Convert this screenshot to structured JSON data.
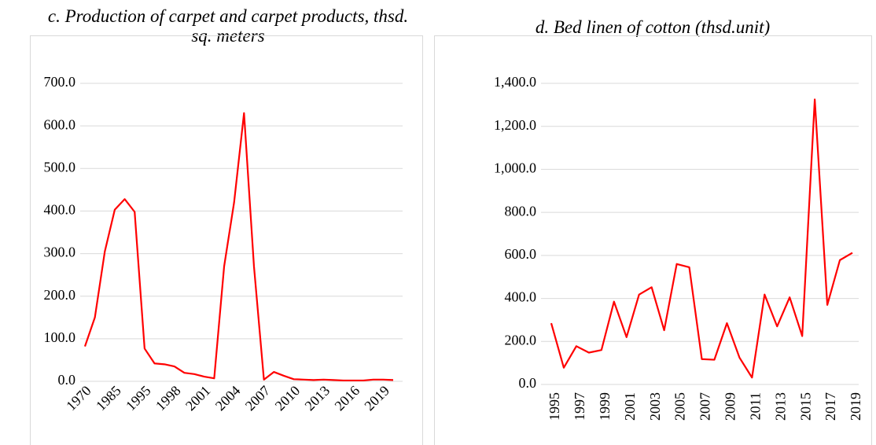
{
  "chart_data": [
    {
      "type": "line",
      "title": "c. Production of carpet and carpet products, thsd. sq. meters",
      "categories": [
        "1970",
        null,
        null,
        "1985",
        null,
        null,
        "1995",
        null,
        null,
        "1998",
        null,
        null,
        "2001",
        null,
        null,
        "2004",
        null,
        null,
        "2007",
        null,
        null,
        "2010",
        null,
        null,
        "2013",
        null,
        null,
        "2016",
        null,
        null,
        "2019",
        null
      ],
      "series": [
        {
          "name": "Production of carpet and carpet products",
          "color": "#ff0000",
          "values": [
            82,
            150,
            305,
            403,
            428,
            398,
            77,
            42,
            40,
            35,
            20,
            17,
            11,
            7,
            270,
            420,
            630,
            270,
            4,
            22,
            13,
            5,
            4,
            3,
            4,
            3,
            2,
            2,
            2,
            4,
            4,
            3
          ]
        }
      ],
      "ylim": [
        0,
        700
      ],
      "yticks": [
        {
          "value": 0,
          "label": "0.0"
        },
        {
          "value": 100,
          "label": "100.0"
        },
        {
          "value": 200,
          "label": "200.0"
        },
        {
          "value": 300,
          "label": "300.0"
        },
        {
          "value": 400,
          "label": "400.0"
        },
        {
          "value": 500,
          "label": "500.0"
        },
        {
          "value": 600,
          "label": "600.0"
        },
        {
          "value": 700,
          "label": "700.0"
        }
      ],
      "grid": true
    },
    {
      "type": "line",
      "title": "d. Bed linen of cotton (thsd.unit)",
      "categories": [
        "1995",
        null,
        "1997",
        null,
        "1999",
        null,
        "2001",
        null,
        "2003",
        null,
        "2005",
        null,
        "2007",
        null,
        "2009",
        null,
        "2011",
        null,
        "2013",
        null,
        "2015",
        null,
        "2017",
        null,
        "2019"
      ],
      "series": [
        {
          "name": "Bed linen of cotton",
          "color": "#ff0000",
          "values": [
            285,
            78,
            178,
            148,
            160,
            385,
            220,
            418,
            452,
            252,
            560,
            545,
            118,
            115,
            285,
            125,
            32,
            418,
            270,
            405,
            225,
            1325,
            370,
            578,
            612
          ]
        }
      ],
      "ylim": [
        0,
        1400
      ],
      "yticks": [
        {
          "value": 0,
          "label": "0.0"
        },
        {
          "value": 200,
          "label": "200.0"
        },
        {
          "value": 400,
          "label": "400.0"
        },
        {
          "value": 600,
          "label": "600.0"
        },
        {
          "value": 800,
          "label": "800.0"
        },
        {
          "value": 1000,
          "label": "1,000.0"
        },
        {
          "value": 1200,
          "label": "1,200.0"
        },
        {
          "value": 1400,
          "label": "1,400.0"
        }
      ],
      "grid": true
    }
  ]
}
